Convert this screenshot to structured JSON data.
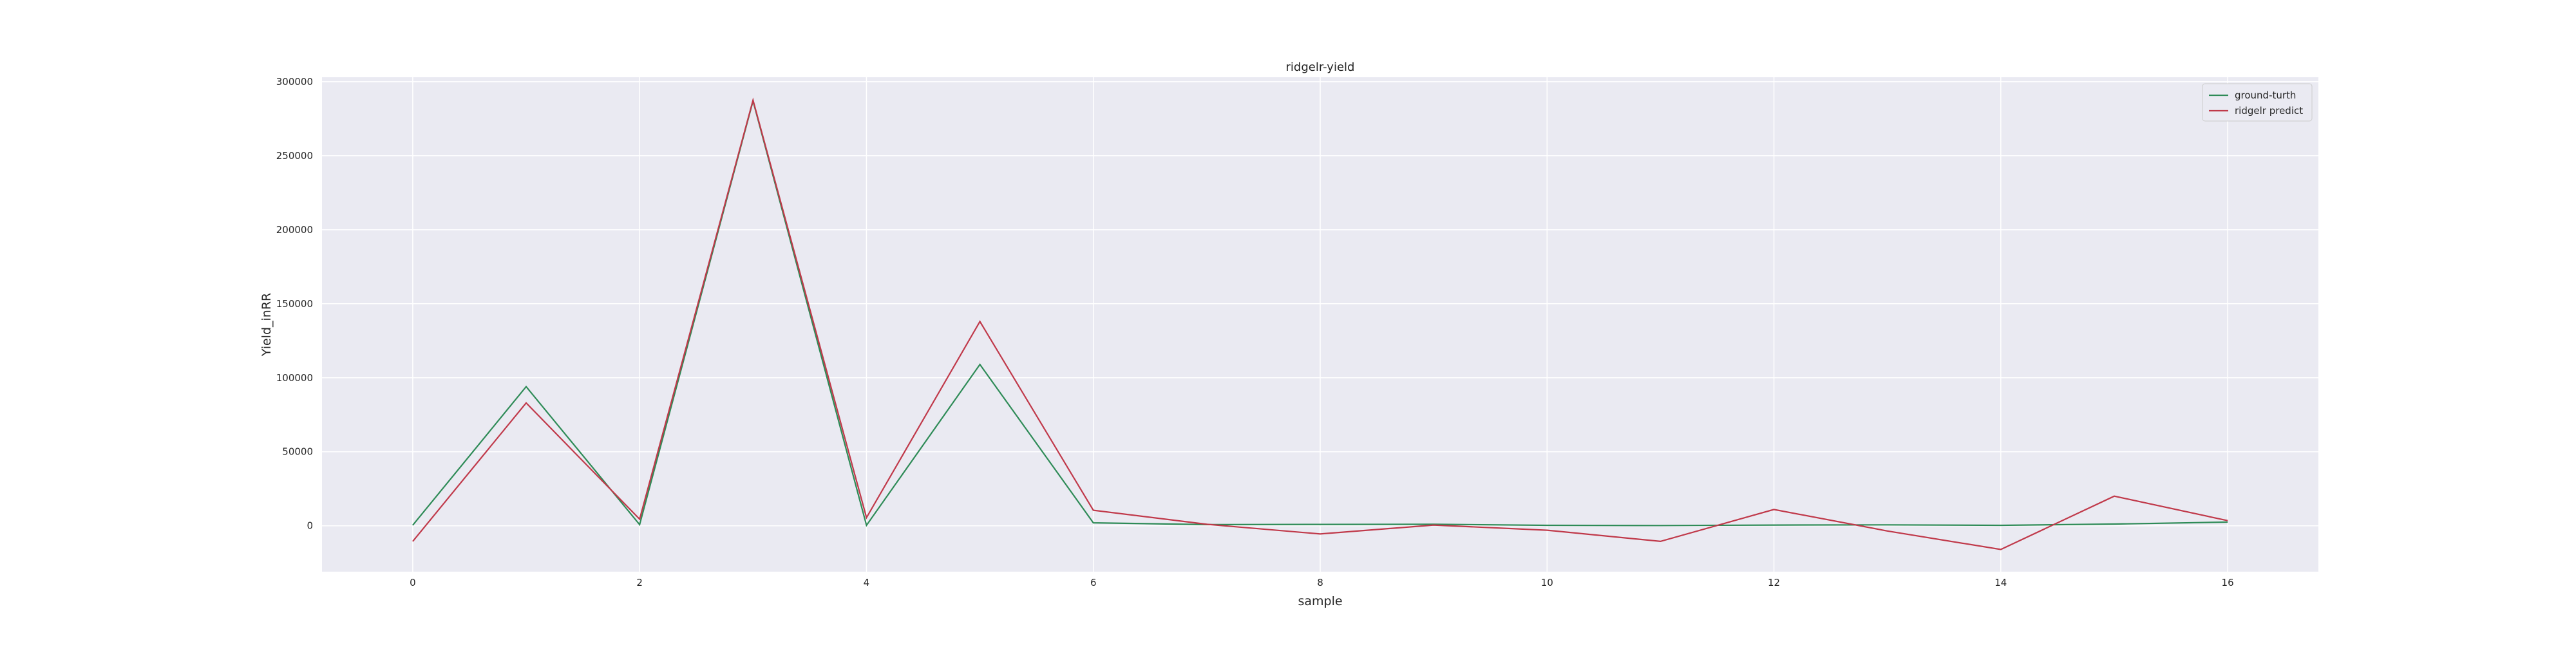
{
  "chart_data": {
    "type": "line",
    "title": "ridgelr-yield",
    "xlabel": "sample",
    "ylabel": "Yield_inRR",
    "x": [
      0,
      1,
      2,
      3,
      4,
      5,
      6,
      7,
      8,
      9,
      10,
      11,
      12,
      13,
      14,
      15,
      16
    ],
    "xlim": [
      -0.8,
      16.8
    ],
    "ylim": [
      -31000,
      303000
    ],
    "x_ticks": [
      0,
      2,
      4,
      6,
      8,
      10,
      12,
      14,
      16
    ],
    "y_ticks": [
      0,
      50000,
      100000,
      150000,
      200000,
      250000,
      300000
    ],
    "grid": true,
    "legend_position": "top-right",
    "series": [
      {
        "name": "ground-turth",
        "color": "#2e8b57",
        "values": [
          400,
          94000,
          800,
          287000,
          300,
          109000,
          2000,
          800,
          900,
          1000,
          300,
          200,
          500,
          600,
          300,
          1200,
          2500
        ]
      },
      {
        "name": "ridgelr predict",
        "color": "#c0394a",
        "values": [
          -10500,
          83000,
          4500,
          287500,
          5500,
          138000,
          10500,
          1000,
          -5500,
          500,
          -3000,
          -10500,
          11000,
          -3500,
          -16000,
          20000,
          3500
        ]
      }
    ]
  }
}
